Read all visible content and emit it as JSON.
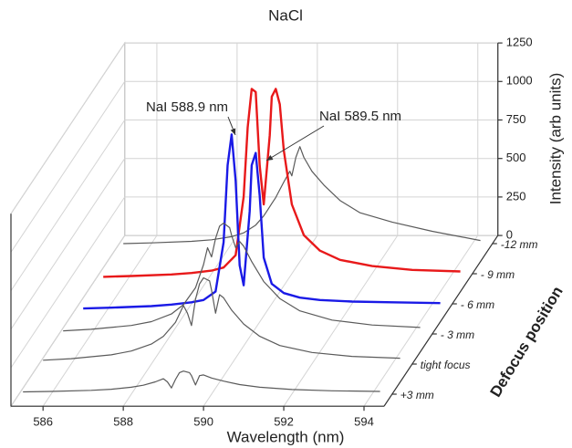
{
  "chart_data": {
    "type": "waterfall",
    "title": "NaCl",
    "xlabel": "Wavelength (nm)",
    "zlabel": "Intensity (arb units)",
    "depth_label": "Defocus position",
    "xlim": [
      585.2,
      594.5
    ],
    "xticks": [
      586,
      588,
      590,
      592,
      594
    ],
    "zlim": [
      0,
      1250
    ],
    "zticks": [
      0,
      250,
      500,
      750,
      1000,
      1250
    ],
    "grid": true,
    "x": [
      585.3,
      586,
      587,
      587.5,
      588,
      588.3,
      588.6,
      588.8,
      588.9,
      589.0,
      589.1,
      589.2,
      589.3,
      589.45,
      589.5,
      589.6,
      589.7,
      589.8,
      590,
      590.3,
      590.7,
      591.2,
      592,
      593,
      594.2
    ],
    "series": [
      {
        "name": "-12 mm",
        "color": "#5a5a5a",
        "values": [
          0,
          5,
          15,
          25,
          45,
          70,
          120,
          180,
          220,
          260,
          300,
          350,
          400,
          470,
          440,
          560,
          630,
          560,
          470,
          380,
          280,
          200,
          140,
          80,
          20
        ]
      },
      {
        "name": "- 9 mm",
        "color": "#e8191a",
        "values": [
          -20,
          -15,
          -5,
          5,
          20,
          40,
          120,
          500,
          950,
          1200,
          1180,
          700,
          450,
          900,
          1150,
          1200,
          1100,
          800,
          450,
          250,
          150,
          90,
          50,
          25,
          15
        ]
      },
      {
        "name": "- 6 mm",
        "color": "#1a1ae6",
        "values": [
          -30,
          -25,
          -15,
          -5,
          10,
          25,
          80,
          400,
          900,
          1100,
          800,
          250,
          120,
          600,
          900,
          980,
          700,
          300,
          130,
          70,
          40,
          25,
          15,
          10,
          5
        ]
      },
      {
        "name": "- 3 mm",
        "color": "#5a5a5a",
        "values": [
          20,
          30,
          55,
          80,
          130,
          190,
          300,
          450,
          560,
          500,
          620,
          700,
          720,
          690,
          640,
          560,
          600,
          570,
          470,
          340,
          230,
          150,
          90,
          58,
          42
        ]
      },
      {
        "name": "tight focus",
        "color": "#5a5a5a",
        "values": [
          25,
          35,
          60,
          85,
          130,
          180,
          270,
          380,
          330,
          250,
          420,
          520,
          560,
          540,
          480,
          330,
          450,
          430,
          350,
          260,
          180,
          120,
          75,
          50,
          38
        ]
      },
      {
        "name": "+3 mm",
        "color": "#5a5a5a",
        "values": [
          15,
          18,
          25,
          32,
          45,
          58,
          80,
          100,
          80,
          40,
          95,
          140,
          150,
          140,
          120,
          60,
          120,
          125,
          105,
          85,
          62,
          45,
          30,
          22,
          18
        ]
      }
    ],
    "annotations": [
      "NaI 588.9 nm",
      "NaI 589.5 nm"
    ]
  }
}
